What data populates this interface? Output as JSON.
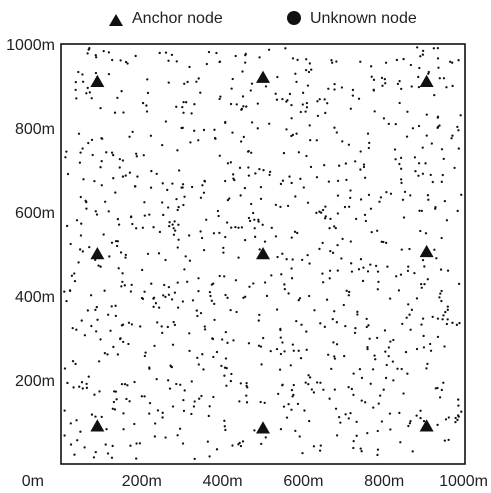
{
  "chart_data": {
    "type": "scatter",
    "xlim": [
      0,
      1000
    ],
    "ylim": [
      0,
      1000
    ],
    "grid": false,
    "legend_placement": "top-center",
    "x_tick_labels": [
      "0m",
      "200m",
      "400m",
      "600m",
      "800m",
      "1000m"
    ],
    "y_tick_labels": [
      "1000m",
      "800m",
      "600m",
      "400m",
      "200m"
    ],
    "x_ticks": [
      0,
      200,
      400,
      600,
      800,
      1000
    ],
    "y_ticks": [
      1000,
      800,
      600,
      400,
      200
    ],
    "legend": {
      "anchor_label": "Anchor node",
      "unknown_label": "Unknown node"
    },
    "anchors": [
      {
        "x": 90,
        "y": 910
      },
      {
        "x": 500,
        "y": 920
      },
      {
        "x": 905,
        "y": 910
      },
      {
        "x": 90,
        "y": 500
      },
      {
        "x": 500,
        "y": 500
      },
      {
        "x": 905,
        "y": 505
      },
      {
        "x": 90,
        "y": 90
      },
      {
        "x": 500,
        "y": 85
      },
      {
        "x": 905,
        "y": 90
      }
    ],
    "unknown_node_count": 1000,
    "colors": {
      "anchor": "#111111",
      "unknown": "#111111",
      "axis": "#111111"
    }
  }
}
